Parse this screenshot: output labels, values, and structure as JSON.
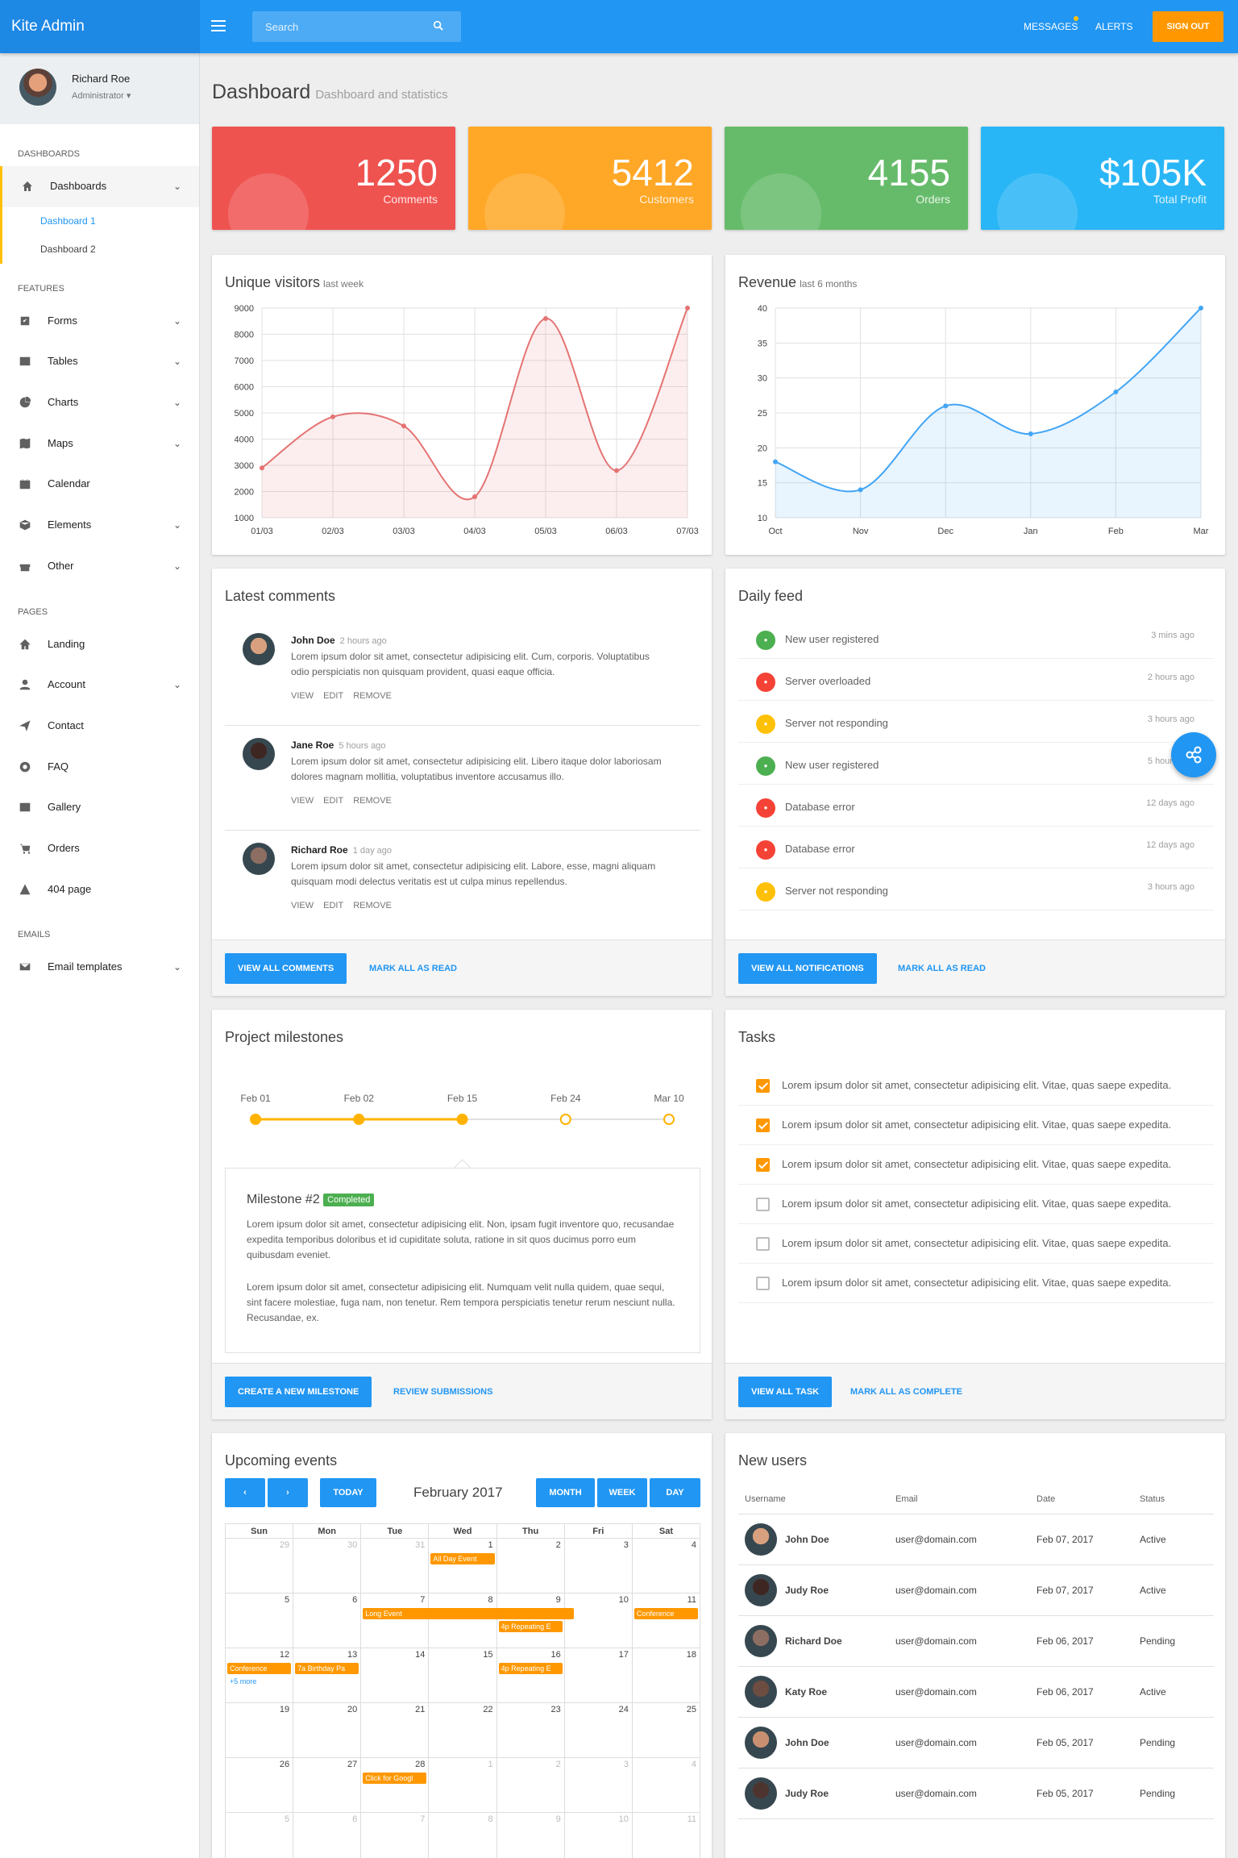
{
  "app": {
    "title": "Kite Admin"
  },
  "topbar": {
    "search_placeholder": "Search",
    "messages": "MESSAGES",
    "alerts": "ALERTS",
    "signout": "SIGN OUT"
  },
  "user": {
    "name": "Richard Roe",
    "role": "Administrator ▾"
  },
  "sidebar": {
    "sections": [
      "DASHBOARDS",
      "FEATURES",
      "PAGES",
      "EMAILS"
    ],
    "dashboards": {
      "label": "Dashboards",
      "sub": [
        "Dashboard 1",
        "Dashboard 2"
      ]
    },
    "features": [
      {
        "label": "Forms",
        "icon": "checkbox-icon"
      },
      {
        "label": "Tables",
        "icon": "table-icon"
      },
      {
        "label": "Charts",
        "icon": "pie-chart-icon"
      },
      {
        "label": "Maps",
        "icon": "map-icon"
      },
      {
        "label": "Calendar",
        "icon": "calendar-icon"
      },
      {
        "label": "Elements",
        "icon": "cube-icon"
      },
      {
        "label": "Other",
        "icon": "gift-icon"
      }
    ],
    "pages": [
      {
        "label": "Landing",
        "icon": "home-icon"
      },
      {
        "label": "Account",
        "icon": "user-icon"
      },
      {
        "label": "Contact",
        "icon": "paper-plane-icon"
      },
      {
        "label": "FAQ",
        "icon": "lifebuoy-icon"
      },
      {
        "label": "Gallery",
        "icon": "image-icon"
      },
      {
        "label": "Orders",
        "icon": "cart-icon"
      },
      {
        "label": "404 page",
        "icon": "warning-icon"
      }
    ],
    "emails": [
      {
        "label": "Email templates",
        "icon": "envelope-icon"
      }
    ]
  },
  "page": {
    "title": "Dashboard",
    "subtitle": "Dashboard and statistics"
  },
  "stats": [
    {
      "value": "1250",
      "label": "Comments",
      "color": "#ef5350"
    },
    {
      "value": "5412",
      "label": "Customers",
      "color": "#ffa726"
    },
    {
      "value": "4155",
      "label": "Orders",
      "color": "#66bb6a"
    },
    {
      "value": "$105K",
      "label": "Total Profit",
      "color": "#29b6f6"
    }
  ],
  "visitors": {
    "title": "Unique visitors",
    "sub": "last week"
  },
  "revenue": {
    "title": "Revenue",
    "sub": "last 6 months"
  },
  "chart_data": [
    {
      "type": "line",
      "x": [
        "01/03",
        "02/03",
        "03/03",
        "04/03",
        "05/03",
        "06/03",
        "07/03"
      ],
      "values": [
        2900,
        4850,
        4500,
        1800,
        8600,
        2800,
        9000
      ],
      "ylim": [
        1000,
        9000
      ],
      "yticks": [
        1000,
        2000,
        3000,
        4000,
        5000,
        6000,
        7000,
        8000,
        9000
      ],
      "color": "#e57373"
    },
    {
      "type": "line",
      "x": [
        "Oct",
        "Nov",
        "Dec",
        "Jan",
        "Feb",
        "Mar"
      ],
      "values": [
        18,
        14,
        26,
        22,
        28,
        40
      ],
      "ylim": [
        10,
        40
      ],
      "yticks": [
        10,
        15,
        20,
        25,
        30,
        35,
        40
      ],
      "color": "#42a5f5"
    }
  ],
  "comments": {
    "title": "Latest comments",
    "items": [
      {
        "name": "John Doe",
        "time": "2 hours ago",
        "text": "Lorem ipsum dolor sit amet, consectetur adipisicing elit. Cum, corporis. Voluptatibus odio perspiciatis non quisquam provident, quasi eaque officia."
      },
      {
        "name": "Jane Roe",
        "time": "5 hours ago",
        "text": "Lorem ipsum dolor sit amet, consectetur adipisicing elit. Libero itaque dolor laboriosam dolores magnam mollitia, voluptatibus inventore accusamus illo."
      },
      {
        "name": "Richard Roe",
        "time": "1 day ago",
        "text": "Lorem ipsum dolor sit amet, consectetur adipisicing elit. Labore, esse, magni aliquam quisquam modi delectus veritatis est ut culpa minus repellendus."
      }
    ],
    "actions": [
      "VIEW",
      "EDIT",
      "REMOVE"
    ],
    "btn": "VIEW ALL COMMENTS",
    "link": "MARK ALL AS READ"
  },
  "feed": {
    "title": "Daily feed",
    "items": [
      {
        "text": "New user registered",
        "time": "3 mins ago",
        "color": "#4caf50"
      },
      {
        "text": "Server overloaded",
        "time": "2 hours ago",
        "color": "#f44336"
      },
      {
        "text": "Server not responding",
        "time": "3 hours ago",
        "color": "#ffc107"
      },
      {
        "text": "New user registered",
        "time": "5 hours ago",
        "color": "#4caf50"
      },
      {
        "text": "Database error",
        "time": "12 days ago",
        "color": "#f44336"
      },
      {
        "text": "Database error",
        "time": "12 days ago",
        "color": "#f44336"
      },
      {
        "text": "Server not responding",
        "time": "3 hours ago",
        "color": "#ffc107"
      }
    ],
    "btn": "VIEW ALL NOTIFICATIONS",
    "link": "MARK ALL AS READ"
  },
  "milestones": {
    "title": "Project milestones",
    "dates": [
      "Feb 01",
      "Feb 02",
      "Feb 15",
      "Feb 24",
      "Mar 10"
    ],
    "progress": 0.5,
    "detail_title": "Milestone #2",
    "badge": "Completed",
    "p1": "Lorem ipsum dolor sit amet, consectetur adipisicing elit. Non, ipsam fugit inventore quo, recusandae expedita temporibus doloribus et id cupiditate soluta, ratione in sit quos ducimus porro eum quibusdam eveniet.",
    "p2": "Lorem ipsum dolor sit amet, consectetur adipisicing elit. Numquam velit nulla quidem, quae sequi, sint facere molestiae, fuga nam, non tenetur. Rem tempora perspiciatis tenetur rerum nesciunt nulla. Recusandae, ex.",
    "btn": "CREATE A NEW MILESTONE",
    "link": "REVIEW SUBMISSIONS"
  },
  "tasks": {
    "title": "Tasks",
    "items": [
      {
        "text": "Lorem ipsum dolor sit amet, consectetur adipisicing elit. Vitae, quas saepe expedita.",
        "done": true
      },
      {
        "text": "Lorem ipsum dolor sit amet, consectetur adipisicing elit. Vitae, quas saepe expedita.",
        "done": true
      },
      {
        "text": "Lorem ipsum dolor sit amet, consectetur adipisicing elit. Vitae, quas saepe expedita.",
        "done": true
      },
      {
        "text": "Lorem ipsum dolor sit amet, consectetur adipisicing elit. Vitae, quas saepe expedita.",
        "done": false
      },
      {
        "text": "Lorem ipsum dolor sit amet, consectetur adipisicing elit. Vitae, quas saepe expedita.",
        "done": false
      },
      {
        "text": "Lorem ipsum dolor sit amet, consectetur adipisicing elit. Vitae, quas saepe expedita.",
        "done": false
      }
    ],
    "btn": "VIEW ALL TASK",
    "link": "MARK ALL AS COMPLETE"
  },
  "events": {
    "title": "Upcoming events",
    "month": "February 2017",
    "today": "TODAY",
    "views": [
      "MONTH",
      "WEEK",
      "DAY"
    ],
    "days": [
      "Sun",
      "Mon",
      "Tue",
      "Wed",
      "Thu",
      "Fri",
      "Sat"
    ],
    "weeks": [
      [
        [
          "29",
          1
        ],
        [
          "30",
          1
        ],
        [
          "31",
          1
        ],
        [
          "1",
          0
        ],
        [
          "2",
          0
        ],
        [
          "3",
          0
        ],
        [
          "4",
          0
        ]
      ],
      [
        [
          "5",
          0
        ],
        [
          "6",
          0
        ],
        [
          "7",
          0
        ],
        [
          "8",
          0
        ],
        [
          "9",
          0
        ],
        [
          "10",
          0
        ],
        [
          "11",
          0
        ]
      ],
      [
        [
          "12",
          0
        ],
        [
          "13",
          0
        ],
        [
          "14",
          0
        ],
        [
          "15",
          0
        ],
        [
          "16",
          0
        ],
        [
          "17",
          0
        ],
        [
          "18",
          0
        ]
      ],
      [
        [
          "19",
          0
        ],
        [
          "20",
          0
        ],
        [
          "21",
          0
        ],
        [
          "22",
          0
        ],
        [
          "23",
          0
        ],
        [
          "24",
          0
        ],
        [
          "25",
          0
        ]
      ],
      [
        [
          "26",
          0
        ],
        [
          "27",
          0
        ],
        [
          "28",
          0
        ],
        [
          "1",
          1
        ],
        [
          "2",
          1
        ],
        [
          "3",
          1
        ],
        [
          "4",
          1
        ]
      ],
      [
        [
          "5",
          1
        ],
        [
          "6",
          1
        ],
        [
          "7",
          1
        ],
        [
          "8",
          1
        ],
        [
          "9",
          1
        ],
        [
          "10",
          1
        ],
        [
          "11",
          1
        ]
      ]
    ],
    "event_labels": [
      "All Day Event",
      "Long Event",
      "4p Repeating E",
      "Conference",
      "Conference",
      "7a Birthday Pa",
      "4p Repeating E",
      "+5 more",
      "Click for Googl"
    ]
  },
  "users": {
    "title": "New users",
    "headers": [
      "Username",
      "Email",
      "Date",
      "Status"
    ],
    "rows": [
      {
        "name": "John Doe",
        "email": "user@domain.com",
        "date": "Feb 07, 2017",
        "status": "Active"
      },
      {
        "name": "Judy Roe",
        "email": "user@domain.com",
        "date": "Feb 07, 2017",
        "status": "Active"
      },
      {
        "name": "Richard Doe",
        "email": "user@domain.com",
        "date": "Feb 06, 2017",
        "status": "Pending"
      },
      {
        "name": "Katy Roe",
        "email": "user@domain.com",
        "date": "Feb 06, 2017",
        "status": "Active"
      },
      {
        "name": "John Doe",
        "email": "user@domain.com",
        "date": "Feb 05, 2017",
        "status": "Pending"
      },
      {
        "name": "Judy Roe",
        "email": "user@domain.com",
        "date": "Feb 05, 2017",
        "status": "Pending"
      }
    ]
  }
}
